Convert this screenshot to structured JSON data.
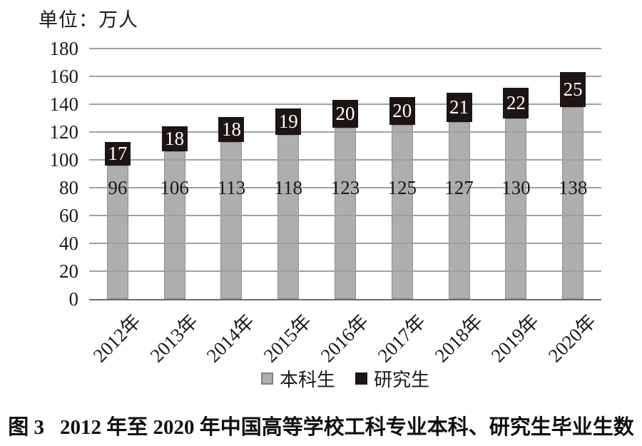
{
  "figure": {
    "unit_label": "单位：万人",
    "caption_prefix": "图 3",
    "caption_text": "2012 年至 2020 年中国高等学校工科专业本科、研究生毕业生数"
  },
  "chart_data": {
    "type": "bar",
    "stacked": true,
    "title": "图 3 2012 年至 2020 年中国高等学校工科专业本科、研究生毕业生数",
    "unit": "万人",
    "categories": [
      "2012年",
      "2013年",
      "2014年",
      "2015年",
      "2016年",
      "2017年",
      "2018年",
      "2019年",
      "2020年"
    ],
    "series": [
      {
        "name": "本科生",
        "color": "#aeaeae",
        "values": [
          96,
          106,
          113,
          118,
          123,
          125,
          127,
          130,
          138
        ]
      },
      {
        "name": "研究生",
        "color": "#1e1414",
        "values": [
          17,
          18,
          18,
          19,
          20,
          20,
          21,
          22,
          25
        ]
      }
    ],
    "totals": [
      113,
      124,
      131,
      137,
      143,
      145,
      148,
      152,
      163
    ],
    "ylim": [
      0,
      180
    ],
    "yticks": [
      0,
      20,
      40,
      60,
      80,
      100,
      120,
      140,
      160,
      180
    ],
    "grid": true,
    "value_labels": true,
    "xlabel_rotation_deg": 45,
    "legend_position": "bottom"
  },
  "colors": {
    "gridline": "#a0a0a0",
    "axis_line": "#6b6b6b",
    "undergrad_bar": "#aeaeae",
    "grad_bar": "#1e1414",
    "text": "#1a1a1a",
    "bar_value_light": "#ffffff"
  }
}
